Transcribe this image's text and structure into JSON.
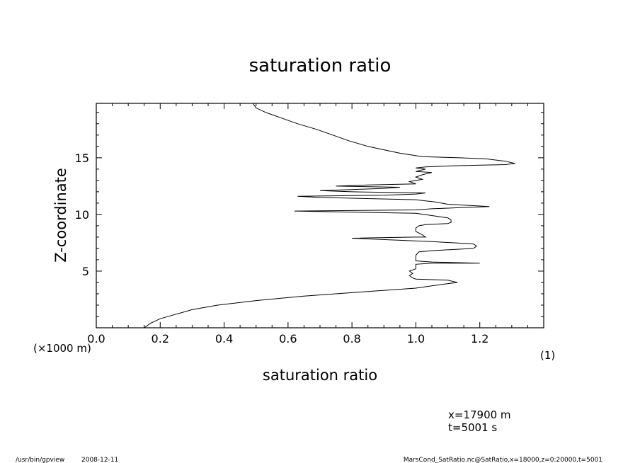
{
  "chart_data": {
    "type": "line",
    "title": "saturation ratio",
    "xlabel": "saturation ratio",
    "ylabel": "Z-coordinate",
    "y_unit_label": "(×1000 m)",
    "x_unit_label": "(1)",
    "xlim": [
      0.0,
      1.4
    ],
    "ylim": [
      0.0,
      19.8
    ],
    "x_ticks": [
      "0.0",
      "0.2",
      "0.4",
      "0.6",
      "0.8",
      "1.0",
      "1.2"
    ],
    "y_ticks": [
      "5",
      "10",
      "15"
    ],
    "grid": false,
    "series": [
      {
        "points": [
          [
            0.15,
            0.0
          ],
          [
            0.17,
            0.4
          ],
          [
            0.2,
            0.8
          ],
          [
            0.25,
            1.2
          ],
          [
            0.3,
            1.6
          ],
          [
            0.38,
            2.0
          ],
          [
            0.5,
            2.4
          ],
          [
            0.65,
            2.8
          ],
          [
            0.85,
            3.2
          ],
          [
            1.0,
            3.5
          ],
          [
            1.05,
            3.7
          ],
          [
            1.1,
            3.9
          ],
          [
            1.13,
            4.0
          ],
          [
            1.1,
            4.2
          ],
          [
            1.0,
            4.3
          ],
          [
            0.99,
            4.4
          ],
          [
            0.98,
            4.6
          ],
          [
            0.99,
            4.8
          ],
          [
            0.98,
            5.0
          ],
          [
            1.0,
            5.2
          ],
          [
            1.0,
            5.4
          ],
          [
            1.0,
            5.6
          ],
          [
            1.05,
            5.7
          ],
          [
            1.2,
            5.7
          ],
          [
            1.05,
            5.8
          ],
          [
            1.0,
            5.9
          ],
          [
            1.0,
            6.4
          ],
          [
            1.01,
            6.7
          ],
          [
            1.05,
            6.8
          ],
          [
            1.18,
            7.0
          ],
          [
            1.19,
            7.2
          ],
          [
            1.18,
            7.4
          ],
          [
            1.05,
            7.6
          ],
          [
            0.8,
            7.9
          ],
          [
            1.0,
            8.0
          ],
          [
            1.03,
            8.0
          ],
          [
            1.02,
            8.2
          ],
          [
            1.0,
            8.5
          ],
          [
            1.0,
            8.8
          ],
          [
            1.01,
            9.0
          ],
          [
            1.03,
            9.1
          ],
          [
            1.1,
            9.2
          ],
          [
            1.11,
            9.3
          ],
          [
            1.11,
            9.5
          ],
          [
            1.1,
            9.7
          ],
          [
            1.05,
            9.9
          ],
          [
            1.0,
            10.1
          ],
          [
            0.62,
            10.3
          ],
          [
            1.0,
            10.4
          ],
          [
            1.05,
            10.5
          ],
          [
            1.23,
            10.7
          ],
          [
            1.1,
            10.9
          ],
          [
            1.06,
            11.1
          ],
          [
            1.03,
            11.2
          ],
          [
            1.0,
            11.3
          ],
          [
            0.7,
            11.5
          ],
          [
            0.63,
            11.6
          ],
          [
            0.9,
            11.7
          ],
          [
            1.0,
            11.8
          ],
          [
            1.03,
            11.9
          ],
          [
            0.8,
            12.0
          ],
          [
            0.7,
            12.1
          ],
          [
            0.8,
            12.2
          ],
          [
            0.9,
            12.3
          ],
          [
            0.95,
            12.4
          ],
          [
            0.75,
            12.5
          ],
          [
            0.85,
            12.6
          ],
          [
            1.0,
            12.7
          ],
          [
            0.98,
            12.9
          ],
          [
            1.0,
            13.0
          ],
          [
            1.02,
            13.1
          ],
          [
            1.0,
            13.3
          ],
          [
            1.02,
            13.5
          ],
          [
            1.05,
            13.7
          ],
          [
            1.0,
            13.8
          ],
          [
            1.03,
            14.0
          ],
          [
            1.0,
            14.1
          ],
          [
            1.03,
            14.2
          ],
          [
            1.12,
            14.3
          ],
          [
            1.28,
            14.4
          ],
          [
            1.31,
            14.5
          ],
          [
            1.28,
            14.7
          ],
          [
            1.22,
            14.9
          ],
          [
            1.13,
            15.0
          ],
          [
            1.02,
            15.1
          ],
          [
            0.95,
            15.4
          ],
          [
            0.9,
            15.7
          ],
          [
            0.85,
            16.0
          ],
          [
            0.79,
            16.5
          ],
          [
            0.74,
            17.0
          ],
          [
            0.69,
            17.5
          ],
          [
            0.63,
            18.0
          ],
          [
            0.58,
            18.5
          ],
          [
            0.53,
            19.0
          ],
          [
            0.5,
            19.4
          ],
          [
            0.49,
            19.8
          ]
        ]
      }
    ]
  },
  "annotations": {
    "x_position": "x=17900 m",
    "time": "t=5001 s"
  },
  "footer": {
    "program": "/usr/bin/gpview",
    "date": "2008-12-11",
    "source": "MarsCond_SatRatio.nc@SatRatio,x=18000,z=0:20000,t=5001"
  }
}
